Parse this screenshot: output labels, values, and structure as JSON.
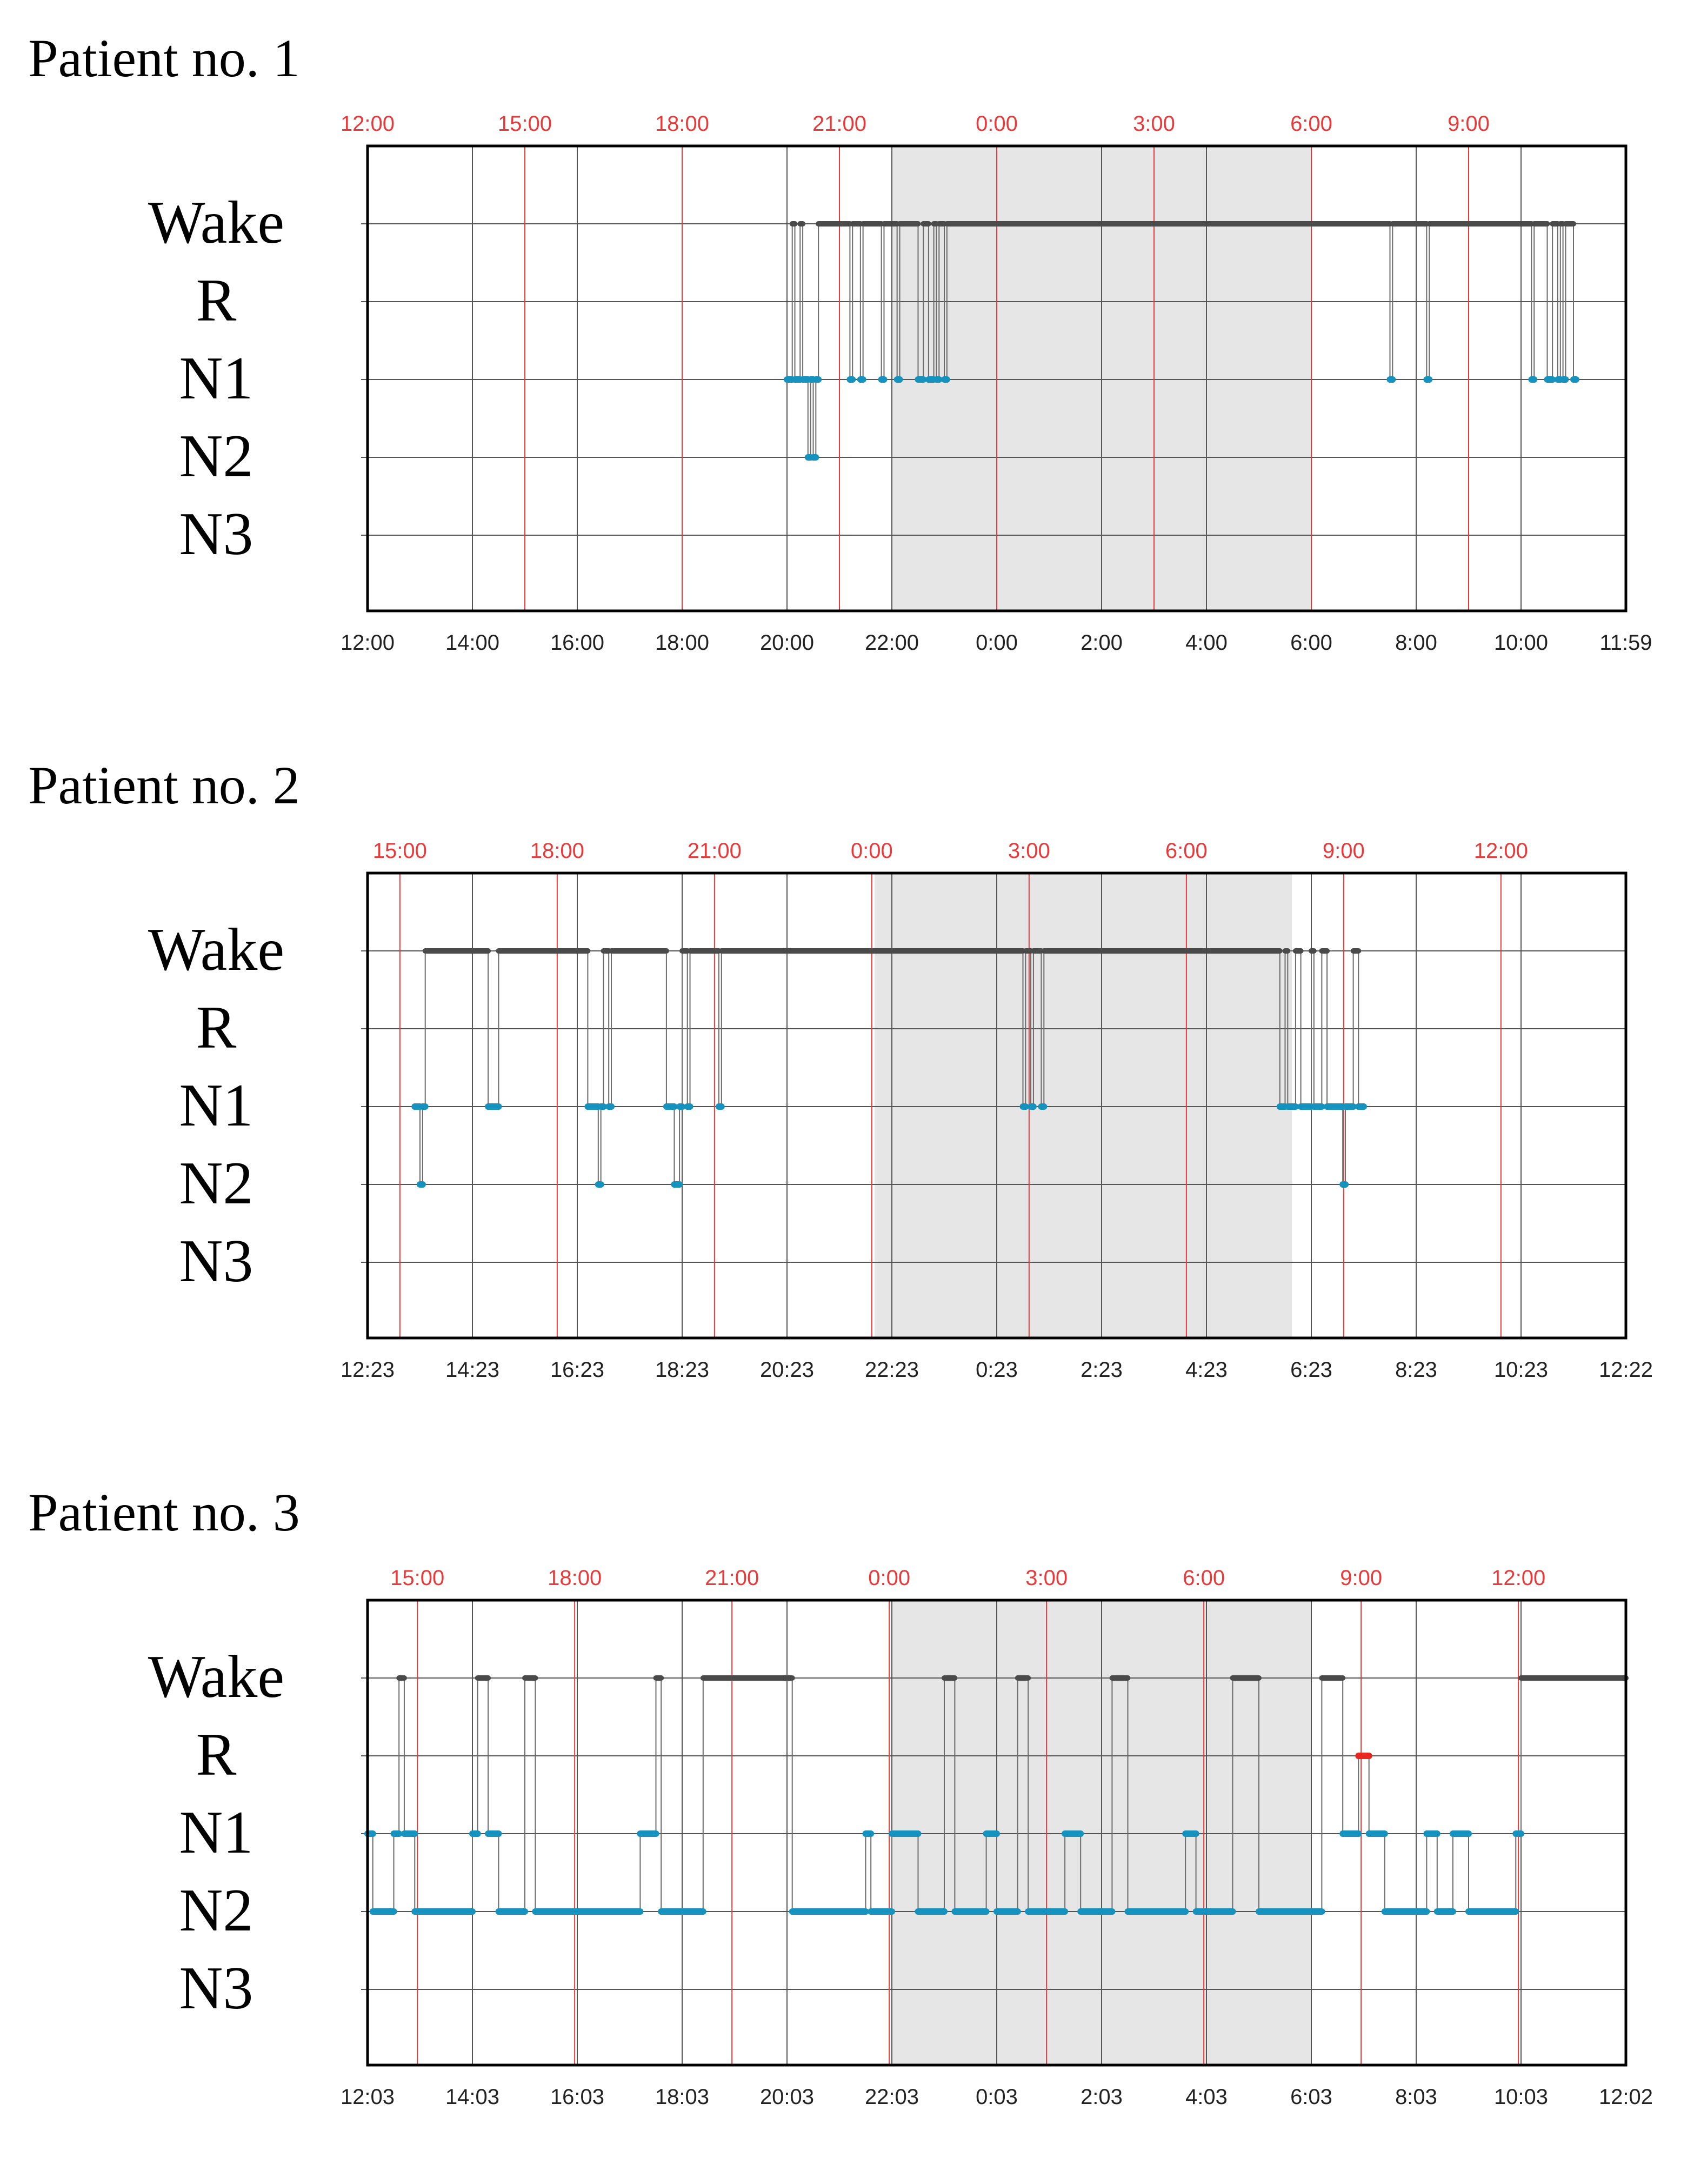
{
  "figure": {
    "stage_colors": {
      "wake": "#4a4a4a",
      "rem": "#e8281e",
      "nrem": "#1592be"
    },
    "night_shade_color": "#e6e6e6",
    "clock_line_color": "#e83a3a"
  },
  "chart_data": [
    {
      "type": "line",
      "title": "Patient no. 1",
      "y_categories": [
        "Wake",
        "R",
        "N1",
        "N2",
        "N3"
      ],
      "xlim_hours": [
        0,
        24
      ],
      "bottom_tick_labels": [
        "12:00",
        "14:00",
        "16:00",
        "18:00",
        "20:00",
        "22:00",
        "0:00",
        "2:00",
        "4:00",
        "6:00",
        "8:00",
        "10:00",
        "11:59"
      ],
      "top_tick_labels": [
        "12:00",
        "15:00",
        "18:00",
        "21:00",
        "0:00",
        "3:00",
        "6:00",
        "9:00"
      ],
      "top_tick_offset_hours": 0,
      "night_period_hours": [
        10,
        18
      ],
      "bouts": [
        [
          8.0,
          8.1,
          "N1"
        ],
        [
          8.1,
          8.15,
          "Wake"
        ],
        [
          8.15,
          8.25,
          "N1"
        ],
        [
          8.25,
          8.3,
          "Wake"
        ],
        [
          8.3,
          8.4,
          "N1"
        ],
        [
          8.4,
          8.45,
          "N2"
        ],
        [
          8.45,
          8.5,
          "N1"
        ],
        [
          8.5,
          8.55,
          "N2"
        ],
        [
          8.55,
          8.6,
          "N1"
        ],
        [
          8.6,
          9.2,
          "Wake"
        ],
        [
          9.2,
          9.25,
          "N1"
        ],
        [
          9.25,
          9.4,
          "Wake"
        ],
        [
          9.4,
          9.45,
          "N1"
        ],
        [
          9.45,
          9.8,
          "Wake"
        ],
        [
          9.8,
          9.85,
          "N1"
        ],
        [
          9.85,
          10.1,
          "Wake"
        ],
        [
          10.1,
          10.15,
          "N1"
        ],
        [
          10.15,
          10.5,
          "Wake"
        ],
        [
          10.5,
          10.6,
          "N1"
        ],
        [
          10.6,
          10.7,
          "Wake"
        ],
        [
          10.7,
          10.8,
          "N1"
        ],
        [
          10.8,
          10.85,
          "Wake"
        ],
        [
          10.85,
          10.9,
          "N1"
        ],
        [
          10.9,
          11.0,
          "Wake"
        ],
        [
          11.0,
          11.05,
          "N1"
        ],
        [
          11.05,
          19.5,
          "Wake"
        ],
        [
          19.5,
          19.55,
          "N1"
        ],
        [
          19.55,
          20.2,
          "Wake"
        ],
        [
          20.2,
          20.25,
          "N1"
        ],
        [
          20.25,
          22.2,
          "Wake"
        ],
        [
          22.2,
          22.25,
          "N1"
        ],
        [
          22.25,
          22.5,
          "Wake"
        ],
        [
          22.5,
          22.6,
          "N1"
        ],
        [
          22.6,
          22.7,
          "Wake"
        ],
        [
          22.7,
          22.75,
          "N1"
        ],
        [
          22.75,
          22.8,
          "Wake"
        ],
        [
          22.8,
          22.85,
          "N1"
        ],
        [
          22.85,
          23.0,
          "Wake"
        ],
        [
          23.0,
          23.05,
          "N1"
        ]
      ]
    },
    {
      "type": "line",
      "title": "Patient no. 2",
      "y_categories": [
        "Wake",
        "R",
        "N1",
        "N2",
        "N3"
      ],
      "xlim_hours": [
        0,
        24
      ],
      "bottom_tick_labels": [
        "12:23",
        "14:23",
        "16:23",
        "18:23",
        "20:23",
        "22:23",
        "0:23",
        "2:23",
        "4:23",
        "6:23",
        "8:23",
        "10:23",
        "12:22"
      ],
      "top_tick_labels": [
        "15:00",
        "18:00",
        "21:00",
        "0:00",
        "3:00",
        "6:00",
        "9:00",
        "12:00"
      ],
      "top_tick_offset_hours": 0.617,
      "night_period_hours": [
        9.67,
        17.63
      ],
      "bouts": [
        [
          0.9,
          1.0,
          "N1"
        ],
        [
          1.0,
          1.05,
          "N2"
        ],
        [
          1.05,
          1.1,
          "N1"
        ],
        [
          1.1,
          2.3,
          "Wake"
        ],
        [
          2.3,
          2.5,
          "N1"
        ],
        [
          2.5,
          4.2,
          "Wake"
        ],
        [
          4.2,
          4.4,
          "N1"
        ],
        [
          4.4,
          4.45,
          "N2"
        ],
        [
          4.45,
          4.5,
          "N1"
        ],
        [
          4.5,
          4.6,
          "Wake"
        ],
        [
          4.6,
          4.65,
          "N1"
        ],
        [
          4.65,
          5.7,
          "Wake"
        ],
        [
          5.7,
          5.85,
          "N1"
        ],
        [
          5.85,
          5.95,
          "N2"
        ],
        [
          5.95,
          6.0,
          "N1"
        ],
        [
          6.0,
          6.1,
          "Wake"
        ],
        [
          6.1,
          6.15,
          "N1"
        ],
        [
          6.15,
          6.7,
          "Wake"
        ],
        [
          6.7,
          6.75,
          "N1"
        ],
        [
          6.75,
          12.5,
          "Wake"
        ],
        [
          12.5,
          12.55,
          "N1"
        ],
        [
          12.55,
          12.65,
          "Wake"
        ],
        [
          12.65,
          12.7,
          "N1"
        ],
        [
          12.7,
          12.85,
          "Wake"
        ],
        [
          12.85,
          12.9,
          "N1"
        ],
        [
          12.9,
          17.4,
          "Wake"
        ],
        [
          17.4,
          17.5,
          "N1"
        ],
        [
          17.5,
          17.55,
          "Wake"
        ],
        [
          17.55,
          17.7,
          "N1"
        ],
        [
          17.7,
          17.8,
          "Wake"
        ],
        [
          17.8,
          18.0,
          "N1"
        ],
        [
          18.0,
          18.05,
          "Wake"
        ],
        [
          18.05,
          18.2,
          "N1"
        ],
        [
          18.2,
          18.3,
          "Wake"
        ],
        [
          18.3,
          18.6,
          "N1"
        ],
        [
          18.6,
          18.65,
          "N2"
        ],
        [
          18.65,
          18.8,
          "N1"
        ],
        [
          18.8,
          18.9,
          "Wake"
        ],
        [
          18.9,
          19.0,
          "N1"
        ]
      ]
    },
    {
      "type": "line",
      "title": "Patient no. 3",
      "y_categories": [
        "Wake",
        "R",
        "N1",
        "N2",
        "N3"
      ],
      "xlim_hours": [
        0,
        24
      ],
      "bottom_tick_labels": [
        "12:03",
        "14:03",
        "16:03",
        "18:03",
        "20:03",
        "22:03",
        "0:03",
        "2:03",
        "4:03",
        "6:03",
        "8:03",
        "10:03",
        "12:02"
      ],
      "top_tick_labels": [
        "15:00",
        "18:00",
        "21:00",
        "0:00",
        "3:00",
        "6:00",
        "9:00",
        "12:00"
      ],
      "top_tick_offset_hours": 0.95,
      "night_period_hours": [
        10,
        18
      ],
      "bouts": [
        [
          0.0,
          0.1,
          "N1"
        ],
        [
          0.1,
          0.5,
          "N2"
        ],
        [
          0.5,
          0.6,
          "N1"
        ],
        [
          0.6,
          0.7,
          "Wake"
        ],
        [
          0.7,
          0.9,
          "N1"
        ],
        [
          0.9,
          2.0,
          "N2"
        ],
        [
          2.0,
          2.1,
          "N1"
        ],
        [
          2.1,
          2.3,
          "Wake"
        ],
        [
          2.3,
          2.5,
          "N1"
        ],
        [
          2.5,
          3.0,
          "N2"
        ],
        [
          3.0,
          3.2,
          "Wake"
        ],
        [
          3.2,
          5.2,
          "N2"
        ],
        [
          5.2,
          5.5,
          "N1"
        ],
        [
          5.5,
          5.6,
          "Wake"
        ],
        [
          5.6,
          6.4,
          "N2"
        ],
        [
          6.4,
          8.1,
          "Wake"
        ],
        [
          8.1,
          9.5,
          "N2"
        ],
        [
          9.5,
          9.6,
          "N1"
        ],
        [
          9.6,
          10.0,
          "N2"
        ],
        [
          10.0,
          10.5,
          "N1"
        ],
        [
          10.5,
          11.0,
          "N2"
        ],
        [
          11.0,
          11.2,
          "Wake"
        ],
        [
          11.2,
          11.8,
          "N2"
        ],
        [
          11.8,
          12.0,
          "N1"
        ],
        [
          12.0,
          12.4,
          "N2"
        ],
        [
          12.4,
          12.6,
          "Wake"
        ],
        [
          12.6,
          13.3,
          "N2"
        ],
        [
          13.3,
          13.6,
          "N1"
        ],
        [
          13.6,
          14.2,
          "N2"
        ],
        [
          14.2,
          14.5,
          "Wake"
        ],
        [
          14.5,
          15.6,
          "N2"
        ],
        [
          15.6,
          15.8,
          "N1"
        ],
        [
          15.8,
          16.5,
          "N2"
        ],
        [
          16.5,
          17.0,
          "Wake"
        ],
        [
          17.0,
          18.2,
          "N2"
        ],
        [
          18.2,
          18.6,
          "Wake"
        ],
        [
          18.6,
          18.9,
          "N1"
        ],
        [
          18.9,
          19.1,
          "R"
        ],
        [
          19.1,
          19.4,
          "N1"
        ],
        [
          19.4,
          20.2,
          "N2"
        ],
        [
          20.2,
          20.4,
          "N1"
        ],
        [
          20.4,
          20.7,
          "N2"
        ],
        [
          20.7,
          21.0,
          "N1"
        ],
        [
          21.0,
          21.9,
          "N2"
        ],
        [
          21.9,
          22.0,
          "N1"
        ],
        [
          22.0,
          24.0,
          "Wake"
        ]
      ]
    }
  ]
}
